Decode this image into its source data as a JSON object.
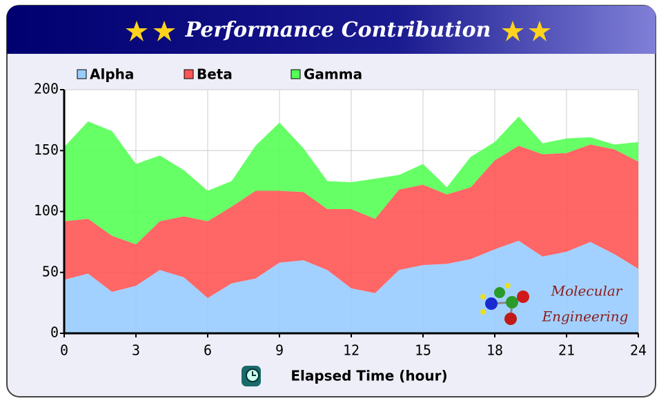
{
  "chart_data": {
    "type": "stacked_area",
    "title": "Performance Contribution",
    "x_label": "Elapsed Time (hour)",
    "watermark": [
      "Molecular",
      "Engineering"
    ],
    "x": [
      0,
      1,
      2,
      3,
      4,
      5,
      6,
      7,
      8,
      9,
      10,
      11,
      12,
      13,
      14,
      15,
      16,
      17,
      18,
      19,
      20,
      21,
      22,
      23,
      24
    ],
    "series": [
      {
        "name": "Alpha",
        "color": "#99ccff",
        "values": [
          44,
          49,
          34,
          39,
          52,
          46,
          29,
          41,
          45,
          58,
          60,
          52,
          37,
          33,
          52,
          56,
          57,
          61,
          69,
          76,
          63,
          67,
          75,
          65,
          53
        ]
      },
      {
        "name": "Beta",
        "color": "#ff5555",
        "values": [
          48,
          45,
          46,
          34,
          40,
          50,
          63,
          63,
          72,
          59,
          56,
          50,
          65,
          61,
          66,
          66,
          57,
          59,
          73,
          78,
          84,
          81,
          80,
          86,
          88
        ]
      },
      {
        "name": "Gamma",
        "color": "#55ff55",
        "values": [
          61,
          80,
          86,
          66,
          54,
          38,
          25,
          21,
          37,
          56,
          36,
          23,
          22,
          33,
          12,
          17,
          6,
          25,
          15,
          24,
          9,
          12,
          6,
          4,
          16
        ]
      }
    ],
    "xlim": [
      0,
      24
    ],
    "xticks": [
      0,
      3,
      6,
      9,
      12,
      15,
      18,
      21,
      24
    ],
    "ylim": [
      0,
      200
    ],
    "yticks": [
      0,
      50,
      100,
      150,
      200
    ],
    "grid": true
  }
}
